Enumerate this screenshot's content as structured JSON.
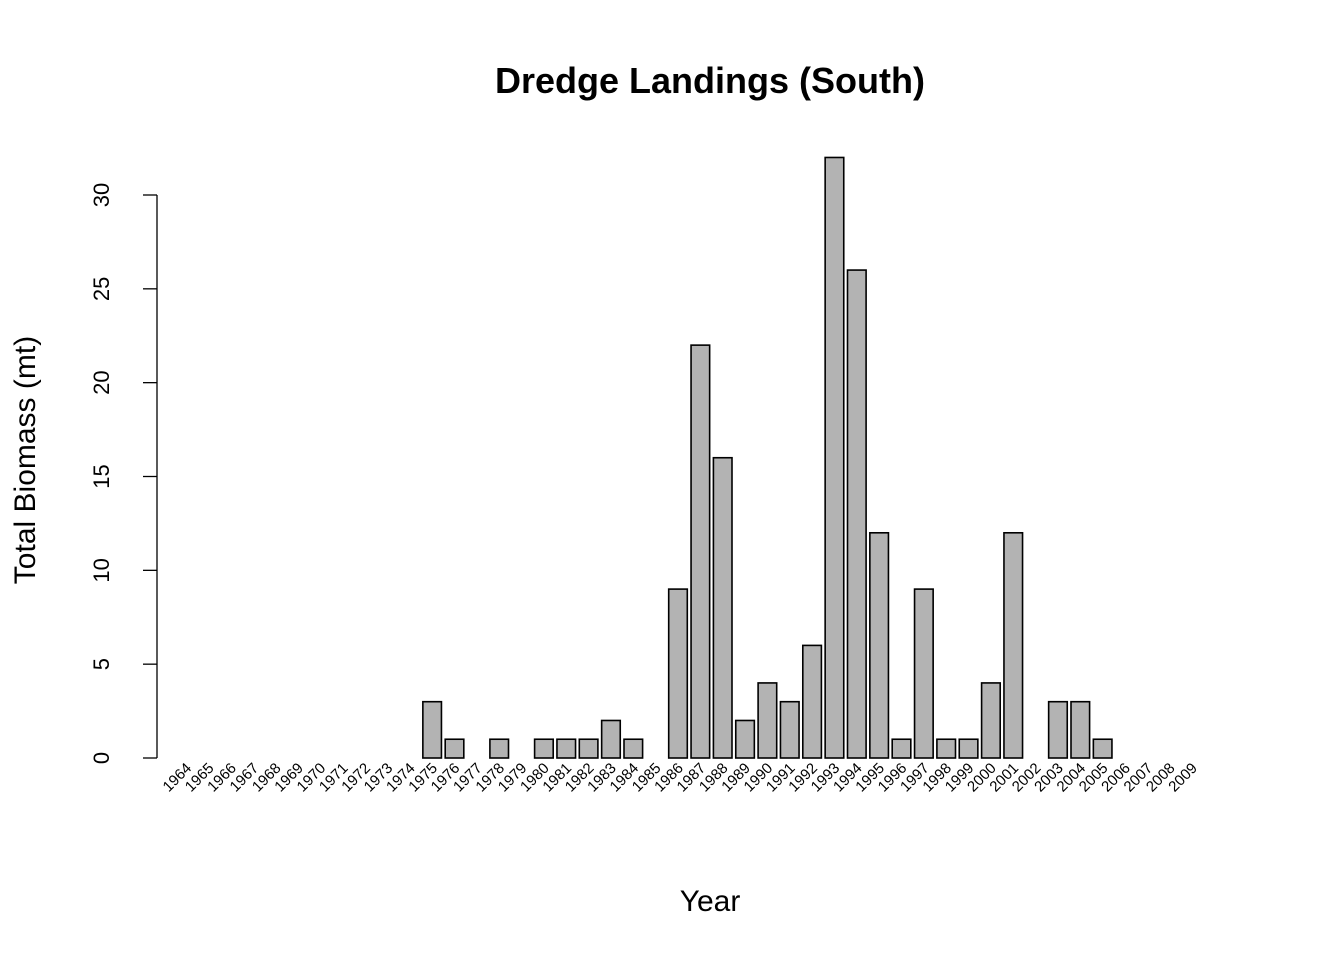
{
  "chart_data": {
    "type": "bar",
    "title": "Dredge Landings (South)",
    "xlabel": "Year",
    "ylabel": "Total Biomass (mt)",
    "ylim": [
      0,
      32
    ],
    "yticks": [
      0,
      5,
      10,
      15,
      20,
      25,
      30
    ],
    "grid": false,
    "legend": "none",
    "bar_color": "#b3b3b3",
    "bar_border_color": "#000000",
    "categories": [
      "1964",
      "1965",
      "1966",
      "1967",
      "1968",
      "1969",
      "1970",
      "1971",
      "1972",
      "1973",
      "1974",
      "1975",
      "1976",
      "1977",
      "1978",
      "1979",
      "1980",
      "1981",
      "1982",
      "1983",
      "1984",
      "1985",
      "1986",
      "1987",
      "1988",
      "1989",
      "1990",
      "1991",
      "1992",
      "1993",
      "1994",
      "1995",
      "1996",
      "1997",
      "1998",
      "1999",
      "2000",
      "2001",
      "2002",
      "2003",
      "2004",
      "2005",
      "2006",
      "2007",
      "2008",
      "2009"
    ],
    "values": [
      0,
      0,
      0,
      0,
      0,
      0,
      0,
      0,
      0,
      0,
      0,
      3,
      1,
      0,
      1,
      0,
      1,
      1,
      1,
      2,
      1,
      0,
      9,
      22,
      16,
      2,
      4,
      3,
      6,
      32,
      26,
      12,
      1,
      9,
      1,
      1,
      4,
      12,
      0,
      3,
      3,
      1,
      0,
      0,
      0,
      0
    ]
  }
}
